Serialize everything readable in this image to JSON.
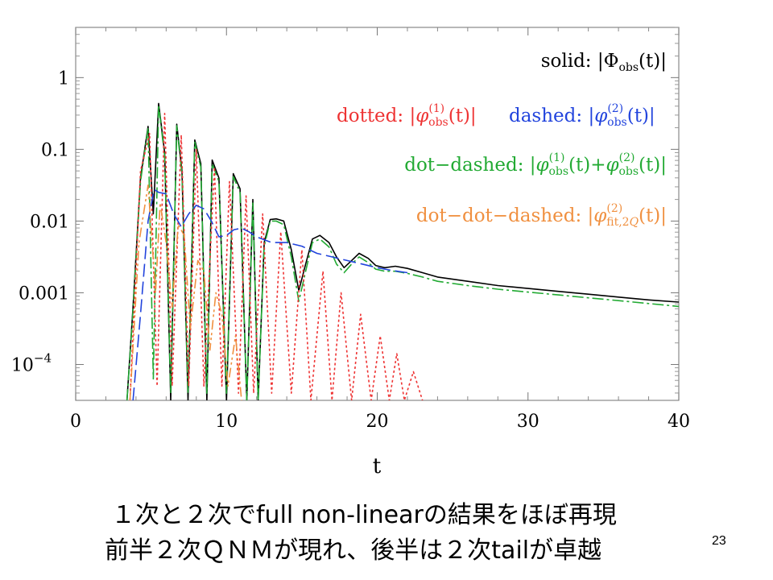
{
  "chart_data": {
    "type": "line",
    "xlabel": "t",
    "xlim": [
      0,
      40
    ],
    "y_scale": "log",
    "ylim_log10": [
      -4.5,
      0.7
    ],
    "x_ticks": [
      {
        "value": 0,
        "label": "0"
      },
      {
        "value": 10,
        "label": "10"
      },
      {
        "value": 20,
        "label": "20"
      },
      {
        "value": 30,
        "label": "30"
      },
      {
        "value": 40,
        "label": "40"
      }
    ],
    "y_ticks": [
      {
        "log10": 0,
        "label": "1"
      },
      {
        "log10": -1,
        "label": "0.1"
      },
      {
        "log10": -2,
        "label": "0.01"
      },
      {
        "log10": -3,
        "label": "0.001"
      },
      {
        "log10": -4,
        "label": "10",
        "sup": "−4"
      }
    ],
    "legend_position": "top-right",
    "legend": [
      {
        "prefix": "solid: ",
        "formula": "|Φobs(t)|",
        "color": "#000000"
      },
      {
        "prefix": "dotted: ",
        "formula": "|φ(1)obs(t)|",
        "color": "#ee3333"
      },
      {
        "prefix": "dashed: ",
        "formula": "|φ(2)obs(t)|",
        "color": "#2244dd"
      },
      {
        "prefix": "dot−dashed: ",
        "formula": "|φ(1)obs(t)+φ(2)obs(t)|",
        "color": "#22aa33"
      },
      {
        "prefix": "dot−dot−dashed: ",
        "formula": "|φ(2)fit,2Q(t)|",
        "color": "#f09040"
      }
    ],
    "series": [
      {
        "key": "solid",
        "color": "#000000",
        "dash": "",
        "x": [
          3.4,
          3.8,
          4.3,
          4.8,
          5.15,
          5.5,
          5.9,
          6.3,
          6.7,
          7.05,
          7.45,
          7.9,
          8.3,
          8.7,
          9.05,
          9.5,
          10.0,
          10.45,
          10.9,
          11.35,
          11.75,
          12.1,
          12.5,
          12.9,
          13.3,
          13.8,
          14.3,
          14.8,
          15.25,
          15.7,
          16.2,
          16.8,
          17.3,
          17.8,
          18.3,
          18.8,
          19.4,
          19.9,
          20.5,
          21.2,
          22.0,
          23.0,
          24.0,
          26.0,
          28.0,
          30.0,
          32.0,
          34.0,
          36.0,
          38.0,
          40.0
        ],
        "y": [
          -4.5,
          -3.2,
          -1.4,
          -0.68,
          -1.9,
          -0.36,
          -1.05,
          -4.5,
          -0.65,
          -1.3,
          -4.5,
          -0.87,
          -1.2,
          -4.5,
          -1.15,
          -1.4,
          -4.5,
          -1.34,
          -1.55,
          -4.5,
          -1.7,
          -4.5,
          -2.3,
          -1.98,
          -1.97,
          -2.0,
          -2.4,
          -2.97,
          -2.6,
          -2.25,
          -2.2,
          -2.3,
          -2.5,
          -2.65,
          -2.55,
          -2.45,
          -2.52,
          -2.62,
          -2.65,
          -2.63,
          -2.66,
          -2.72,
          -2.78,
          -2.84,
          -2.9,
          -2.94,
          -2.98,
          -3.02,
          -3.06,
          -3.1,
          -3.13
        ]
      },
      {
        "key": "dot-dashed",
        "color": "#22aa33",
        "dash": "14,4,3,4",
        "x": [
          3.4,
          3.8,
          4.3,
          4.8,
          5.15,
          5.5,
          5.9,
          6.3,
          6.7,
          7.05,
          7.45,
          7.9,
          8.3,
          8.7,
          9.05,
          9.5,
          10.0,
          10.45,
          10.9,
          11.35,
          11.75,
          12.1,
          12.5,
          12.9,
          13.3,
          13.8,
          14.3,
          14.8,
          15.25,
          15.7,
          16.2,
          16.8,
          17.3,
          17.8,
          18.3,
          18.8,
          19.4,
          19.9,
          20.5,
          21.2,
          22.0,
          23.0,
          24.0,
          26.0,
          28.0,
          30.0,
          32.0,
          34.0,
          36.0,
          38.0,
          40.0
        ],
        "y": [
          -4.5,
          -3.25,
          -1.45,
          -0.7,
          -4.2,
          -0.38,
          -1.1,
          -4.4,
          -0.67,
          -1.35,
          -4.4,
          -0.9,
          -1.25,
          -4.4,
          -1.2,
          -1.45,
          -4.4,
          -1.38,
          -1.6,
          -4.5,
          -1.75,
          -4.5,
          -2.35,
          -2.0,
          -2.0,
          -2.05,
          -2.5,
          -3.12,
          -2.7,
          -2.3,
          -2.25,
          -2.36,
          -2.6,
          -2.72,
          -2.6,
          -2.5,
          -2.58,
          -2.67,
          -2.7,
          -2.7,
          -2.73,
          -2.78,
          -2.84,
          -2.9,
          -2.95,
          -2.99,
          -3.03,
          -3.07,
          -3.11,
          -3.15,
          -3.19
        ]
      },
      {
        "key": "dotted",
        "color": "#ee3333",
        "dash": "3,3",
        "x": [
          3.6,
          4.3,
          4.9,
          5.4,
          5.9,
          6.4,
          7.0,
          7.5,
          8.0,
          8.5,
          9.2,
          9.7,
          10.2,
          10.8,
          11.3,
          11.8,
          12.4,
          13.0,
          13.6,
          14.3,
          15.0,
          15.6,
          16.4,
          17.0,
          17.6,
          18.3,
          18.9,
          19.6,
          20.2,
          20.8,
          21.3,
          21.8,
          22.4,
          23.0
        ],
        "y": [
          -4.5,
          -1.3,
          -0.78,
          -4.3,
          -0.5,
          -4.3,
          -0.8,
          -4.3,
          -1.0,
          -4.3,
          -1.25,
          -4.3,
          -1.45,
          -4.4,
          -1.65,
          -4.4,
          -1.9,
          -4.4,
          -2.15,
          -4.4,
          -2.4,
          -4.5,
          -2.7,
          -4.5,
          -3.0,
          -4.5,
          -3.3,
          -4.5,
          -3.6,
          -4.5,
          -3.85,
          -4.5,
          -4.1,
          -4.5
        ]
      },
      {
        "key": "dashed",
        "color": "#2244dd",
        "dash": "16,6",
        "x": [
          3.8,
          4.3,
          4.8,
          5.2,
          5.5,
          6.0,
          6.5,
          7.0,
          7.5,
          8.0,
          8.5,
          9.0,
          9.5,
          10.0,
          10.5,
          11.0,
          11.5,
          12.0,
          13.0,
          14.0,
          15.0,
          16.0,
          17.0,
          18.0,
          19.0,
          20.0,
          21.0,
          22.0
        ],
        "y": [
          -4.5,
          -3.3,
          -2.0,
          -1.56,
          -1.6,
          -1.62,
          -1.9,
          -2.08,
          -1.9,
          -1.78,
          -1.83,
          -2.0,
          -2.22,
          -2.2,
          -2.12,
          -2.1,
          -2.15,
          -2.22,
          -2.3,
          -2.3,
          -2.35,
          -2.45,
          -2.5,
          -2.55,
          -2.6,
          -2.65,
          -2.69,
          -2.72
        ]
      },
      {
        "key": "dot-dot-dashed",
        "color": "#f09040",
        "dash": "12,4,3,3,3,4",
        "x": [
          3.6,
          4.2,
          4.8,
          5.3,
          5.6,
          6.0,
          6.4,
          6.8,
          7.2,
          7.6,
          8.1,
          8.5,
          8.9,
          9.3,
          9.7,
          10.1,
          10.6,
          11.0
        ],
        "y": [
          -4.5,
          -2.3,
          -1.5,
          -3.0,
          -1.75,
          -2.3,
          -3.2,
          -2.05,
          -2.2,
          -3.5,
          -2.55,
          -2.7,
          -3.8,
          -3.0,
          -3.3,
          -4.3,
          -3.6,
          -4.5
        ]
      }
    ]
  },
  "caption": {
    "line1": "１次と２次でfull non-linearの結果をほぼ再現",
    "line2": "前半２次ＱＮＭが現れ、後半は２次tailが卓越"
  },
  "page_number": "23"
}
